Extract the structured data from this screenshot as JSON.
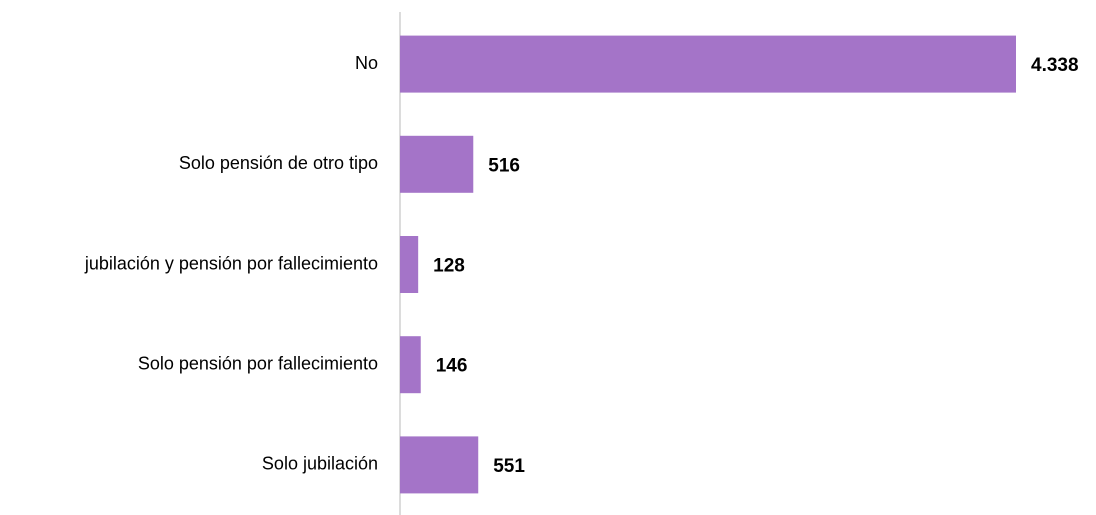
{
  "chart_data": {
    "type": "hbar",
    "categories": [
      "No",
      "Solo pensión de otro tipo",
      "jubilación y pensión por fallecimiento",
      "Solo pensión por fallecimiento",
      "Solo jubilación"
    ],
    "values": [
      4338,
      516,
      128,
      146,
      551
    ],
    "value_labels": [
      "4.338",
      "516",
      "128",
      "146",
      "551"
    ],
    "color": "#a474c8"
  }
}
